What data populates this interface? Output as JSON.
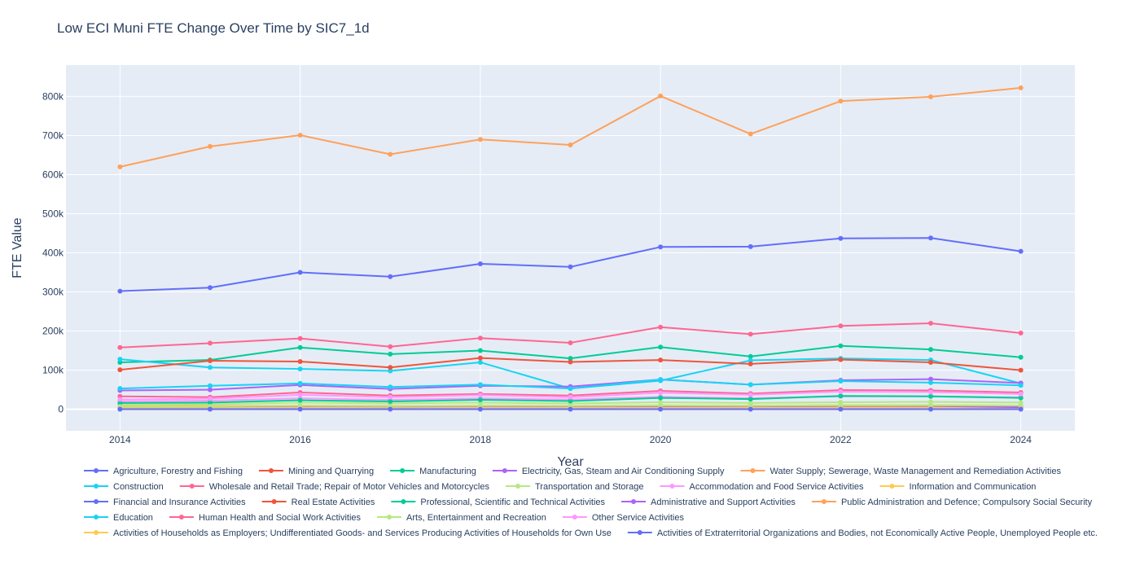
{
  "chart_data": {
    "type": "line",
    "title": "Low ECI Muni FTE Change Over Time by SIC7_1d",
    "xlabel": "Year",
    "ylabel": "FTE Value",
    "x": [
      2014,
      2015,
      2016,
      2017,
      2018,
      2019,
      2020,
      2021,
      2022,
      2023,
      2024
    ],
    "xlim": [
      2013.4,
      2024.6
    ],
    "ylim": [
      -55000,
      880000
    ],
    "x_ticks": [
      2014,
      2016,
      2018,
      2020,
      2022,
      2024
    ],
    "y_ticks": [
      0,
      100000,
      200000,
      300000,
      400000,
      500000,
      600000,
      700000,
      800000
    ],
    "y_tick_labels": [
      "0",
      "100k",
      "200k",
      "300k",
      "400k",
      "500k",
      "600k",
      "700k",
      "800k"
    ],
    "grid": true,
    "legend_position": "bottom",
    "series": [
      {
        "name": "Agriculture, Forestry and Fishing",
        "color": "#636efa",
        "values": [
          500,
          500,
          500,
          500,
          500,
          500,
          500,
          500,
          500,
          500,
          500
        ]
      },
      {
        "name": "Mining and Quarrying",
        "color": "#ef553b",
        "values": [
          3000,
          3000,
          3200,
          3000,
          3100,
          3000,
          3200,
          3100,
          3300,
          3300,
          3200
        ]
      },
      {
        "name": "Manufacturing",
        "color": "#00cc96",
        "values": [
          120000,
          126000,
          158000,
          141000,
          150000,
          130000,
          159000,
          135000,
          162000,
          153000,
          133000
        ]
      },
      {
        "name": "Electricity, Gas, Steam and Air Conditioning Supply",
        "color": "#ab63fa",
        "values": [
          5000,
          5000,
          5500,
          5000,
          5500,
          5200,
          5800,
          5500,
          6000,
          6200,
          6000
        ]
      },
      {
        "name": "Water Supply; Sewerage, Waste Management and Remediation Activities",
        "color": "#ffa15a",
        "values": [
          8000,
          8500,
          9000,
          8500,
          9000,
          8800,
          9500,
          9000,
          9800,
          10000,
          9500
        ]
      },
      {
        "name": "Construction",
        "color": "#19d3f3",
        "values": [
          128000,
          107000,
          103000,
          98000,
          120000,
          53000,
          73000,
          125000,
          130000,
          126000,
          66000
        ]
      },
      {
        "name": "Wholesale and Retail Trade; Repair of Motor Vehicles and Motorcycles",
        "color": "#ff6692",
        "values": [
          158000,
          169000,
          181000,
          160000,
          182000,
          170000,
          210000,
          192000,
          213000,
          220000,
          195000
        ]
      },
      {
        "name": "Transportation and Storage",
        "color": "#b6e880",
        "values": [
          12000,
          13000,
          17000,
          15000,
          17000,
          15000,
          18000,
          16000,
          18000,
          19000,
          17000
        ]
      },
      {
        "name": "Accommodation and Food Service Activities",
        "color": "#ff97ff",
        "values": [
          20000,
          22000,
          28000,
          24000,
          28000,
          25000,
          32000,
          28000,
          33000,
          33000,
          30000
        ]
      },
      {
        "name": "Information and Communication",
        "color": "#fecb52",
        "values": [
          3000,
          3000,
          3500,
          3000,
          3500,
          3200,
          3800,
          3500,
          4000,
          4000,
          1000
        ]
      },
      {
        "name": "Financial and Insurance Activities",
        "color": "#636efa",
        "values": [
          302000,
          311000,
          350000,
          339000,
          372000,
          364000,
          415000,
          416000,
          437000,
          438000,
          404000
        ]
      },
      {
        "name": "Real Estate Activities",
        "color": "#ef553b",
        "values": [
          101000,
          124000,
          122000,
          107000,
          131000,
          121000,
          126000,
          116000,
          127000,
          120000,
          100000
        ]
      },
      {
        "name": "Professional, Scientific and Technical Activities",
        "color": "#00cc96",
        "values": [
          16000,
          17000,
          23000,
          20000,
          24000,
          21000,
          29000,
          26000,
          34000,
          33000,
          29000
        ]
      },
      {
        "name": "Administrative and Support Activities",
        "color": "#ab63fa",
        "values": [
          48000,
          50000,
          62000,
          52000,
          60000,
          58000,
          76000,
          63000,
          74000,
          77000,
          67000
        ]
      },
      {
        "name": "Public Administration and Defence; Compulsory Social Security",
        "color": "#ffa15a",
        "values": [
          620000,
          672000,
          701000,
          652000,
          690000,
          676000,
          801000,
          704000,
          788000,
          799000,
          822000
        ]
      },
      {
        "name": "Education",
        "color": "#19d3f3",
        "values": [
          53000,
          60000,
          66000,
          57000,
          63000,
          53000,
          76000,
          63000,
          72000,
          68000,
          61000
        ]
      },
      {
        "name": "Human Health and Social Work Activities",
        "color": "#ff6692",
        "values": [
          33000,
          31000,
          43000,
          35000,
          39000,
          35000,
          47000,
          40000,
          49000,
          48000,
          43000
        ]
      },
      {
        "name": "Arts, Entertainment and Recreation",
        "color": "#b6e880",
        "values": [
          7000,
          7500,
          9000,
          8000,
          9000,
          8500,
          10000,
          9000,
          10500,
          10500,
          9500
        ]
      },
      {
        "name": "Other Service Activities",
        "color": "#ff97ff",
        "values": [
          25000,
          27000,
          37000,
          31000,
          36000,
          31000,
          42000,
          37000,
          45000,
          44000,
          39000
        ]
      },
      {
        "name": "Activities of Households as Employers; Undifferentiated Goods- and Services Producing Activities of Households for Own Use",
        "color": "#fecb52",
        "values": [
          1000,
          1000,
          1200,
          1000,
          1200,
          1100,
          1300,
          1200,
          1300,
          1300,
          1200
        ]
      },
      {
        "name": "Activities of Extraterritorial Organizations and Bodies, not Economically Active People, Unemployed People etc.",
        "color": "#636efa",
        "values": [
          200,
          200,
          200,
          200,
          200,
          200,
          200,
          200,
          200,
          200,
          200
        ]
      }
    ]
  }
}
